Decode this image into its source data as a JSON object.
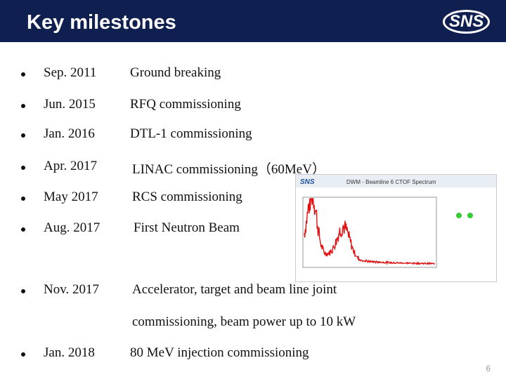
{
  "header": {
    "title": "Key milestones",
    "logo": "SNS"
  },
  "milestones": [
    {
      "date": "Sep. 2011",
      "event": [
        "Ground breaking"
      ]
    },
    {
      "date": "Jun. 2015",
      "event": [
        "RFQ commissioning"
      ]
    },
    {
      "date": "Jan. 2016",
      "event": [
        "DTL-1 commissioning"
      ]
    },
    {
      "date": "Apr. 2017",
      "event": [
        "LINAC commissioning（60MeV）"
      ]
    },
    {
      "date": "May 2017",
      "event": [
        "RCS commissioning"
      ]
    },
    {
      "date": "Aug. 2017",
      "event": [
        "First Neutron Beam"
      ]
    },
    {
      "date": "Nov. 2017",
      "event": [
        "Accelerator, target and beam line joint",
        "commissioning, beam power up to 10 kW"
      ]
    },
    {
      "date": "Jan. 2018",
      "event": [
        "80 MeV injection commissioning"
      ]
    }
  ],
  "screenshot": {
    "logo": "SNS",
    "title": "DWM - Beamline 6 CTOF Spectrum"
  },
  "page_number": "6"
}
